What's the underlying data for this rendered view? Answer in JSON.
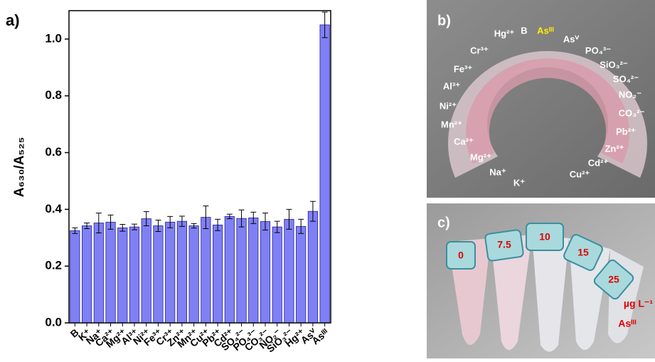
{
  "chart_data": {
    "type": "bar",
    "panel_label": "a)",
    "y_label": "A₆₃₀/A₅₂₅",
    "categories": [
      "B",
      "K⁺",
      "Na⁺",
      "Ca²⁺",
      "Mg²⁺",
      "Al³⁺",
      "Ni²⁺",
      "Fe³⁺",
      "Cr³⁺",
      "Zn²⁺",
      "Mn²⁺",
      "Cu²⁺",
      "Pb²⁺",
      "Cd²⁺",
      "SO₄²⁻",
      "PO₄³⁻",
      "CO₃²⁻",
      "NO₂⁻",
      "SiO₃²⁻",
      "Hg²⁺",
      "Asⱽ",
      "Asᴵᴵᴵ"
    ],
    "values": [
      0.325,
      0.342,
      0.352,
      0.355,
      0.335,
      0.338,
      0.367,
      0.342,
      0.355,
      0.358,
      0.342,
      0.372,
      0.345,
      0.375,
      0.368,
      0.37,
      0.357,
      0.338,
      0.365,
      0.34,
      0.393,
      1.05
    ],
    "errors": [
      0.01,
      0.01,
      0.035,
      0.025,
      0.012,
      0.01,
      0.025,
      0.02,
      0.02,
      0.018,
      0.008,
      0.04,
      0.02,
      0.008,
      0.03,
      0.02,
      0.03,
      0.02,
      0.035,
      0.025,
      0.035,
      0.045
    ],
    "color": "#8080f4",
    "ylim": [
      0,
      1.1
    ],
    "yticks": [
      {
        "value": 0,
        "label": "0.0"
      },
      {
        "value": 0.2,
        "label": "0.2"
      },
      {
        "value": 0.4,
        "label": "0.4"
      },
      {
        "value": 0.6,
        "label": "0.6"
      },
      {
        "value": 0.8,
        "label": "0.8"
      },
      {
        "value": 1.0,
        "label": "1.0"
      }
    ]
  },
  "photo_b": {
    "panel_label": "b)",
    "labels": [
      "Hg²⁺",
      "B",
      "Asᴵᴵᴵ",
      "Asⱽ",
      "PO₄³⁻",
      "Cr³⁺",
      "SiO₃²⁻",
      "Fe³⁺",
      "SO₄²⁻",
      "Al³⁺",
      "NO₂⁻",
      "Ni²⁺",
      "CO₃²⁻",
      "Mn²⁺",
      "Pb²⁺",
      "Ca²⁺",
      "Zn²⁺",
      "Mg²⁺",
      "Cd²⁺",
      "Na⁺",
      "Cu²⁺",
      "K⁺"
    ]
  },
  "photo_c": {
    "panel_label": "c)",
    "concentrations": [
      "0",
      "7.5",
      "10",
      "15",
      "25"
    ],
    "unit": "µg L⁻¹",
    "analyte": "Asᴵᴵᴵ"
  }
}
